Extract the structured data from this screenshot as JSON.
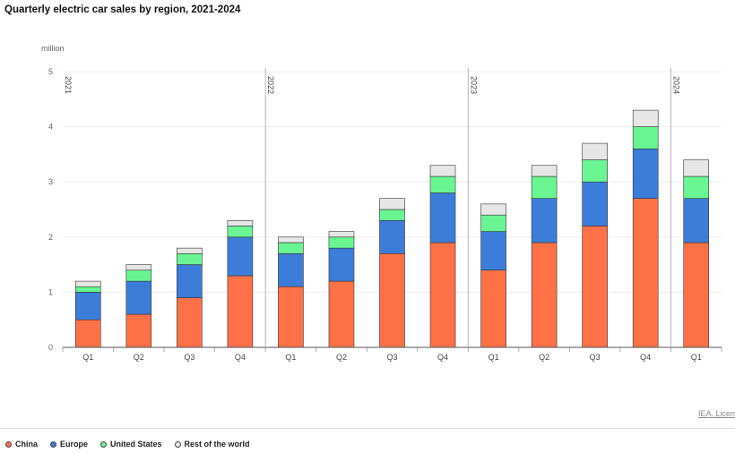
{
  "chart_data": {
    "type": "bar",
    "stacked": true,
    "title": "Quarterly electric car sales by region, 2021-2024",
    "ylabel": "million",
    "xlabel": "",
    "ylim": [
      0,
      5
    ],
    "yticks": [
      0,
      1,
      2,
      3,
      4,
      5
    ],
    "grid": true,
    "legend_position": "bottom-left",
    "categories": [
      "Q1",
      "Q2",
      "Q3",
      "Q4",
      "Q1",
      "Q2",
      "Q3",
      "Q4",
      "Q1",
      "Q2",
      "Q3",
      "Q4",
      "Q1"
    ],
    "year_groups": [
      {
        "label": "2021",
        "start_index": 0
      },
      {
        "label": "2022",
        "start_index": 4
      },
      {
        "label": "2023",
        "start_index": 8
      },
      {
        "label": "2024",
        "start_index": 12
      }
    ],
    "series": [
      {
        "name": "China",
        "color": "#ff7147",
        "values": [
          0.5,
          0.6,
          0.9,
          1.3,
          1.1,
          1.2,
          1.7,
          1.9,
          1.4,
          1.9,
          2.2,
          2.7,
          1.9
        ]
      },
      {
        "name": "Europe",
        "color": "#3c7dd9",
        "values": [
          0.5,
          0.6,
          0.6,
          0.7,
          0.6,
          0.6,
          0.6,
          0.9,
          0.7,
          0.8,
          0.8,
          0.9,
          0.8
        ]
      },
      {
        "name": "United States",
        "color": "#6af593",
        "values": [
          0.1,
          0.2,
          0.2,
          0.2,
          0.2,
          0.2,
          0.2,
          0.3,
          0.3,
          0.4,
          0.4,
          0.4,
          0.4
        ]
      },
      {
        "name": "Rest of the world",
        "color": "#e6e6e6",
        "values": [
          0.1,
          0.1,
          0.1,
          0.1,
          0.1,
          0.1,
          0.2,
          0.2,
          0.2,
          0.2,
          0.3,
          0.3,
          0.3
        ]
      }
    ]
  },
  "source_link": "IEA. Licen"
}
